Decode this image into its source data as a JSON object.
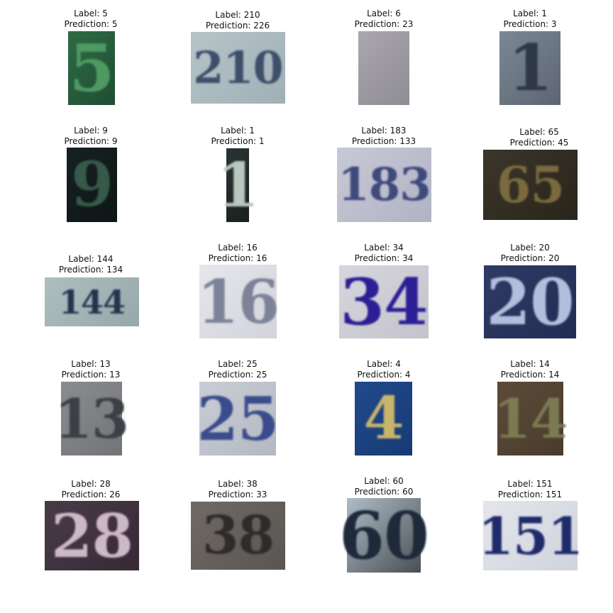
{
  "panels": [
    {
      "label_text": "Label: 5",
      "prediction_text": "Prediction: 5",
      "digits": "5",
      "bg": "#2f6b45",
      "bg2": "#1f4d32",
      "fg": "#4f9a63"
    },
    {
      "label_text": "Label: 210",
      "prediction_text": "Prediction: 226",
      "digits": "210",
      "bg": "#b7c4c8",
      "bg2": "#9fb0b6",
      "fg": "#3e4f6b"
    },
    {
      "label_text": "Label: 6",
      "prediction_text": "Prediction: 23",
      "digits": "",
      "bg": "#aaa7ad",
      "bg2": "#8f8c94",
      "fg": "#9c99a0"
    },
    {
      "label_text": "Label: 1",
      "prediction_text": "Prediction: 3",
      "digits": "1",
      "bg": "#7b8794",
      "bg2": "#5c6672",
      "fg": "#2f3946"
    },
    {
      "label_text": "Label: 9",
      "prediction_text": "Prediction: 9",
      "digits": "9",
      "bg": "#162121",
      "bg2": "#0e1616",
      "fg": "#365a4a"
    },
    {
      "label_text": "Label: 1",
      "prediction_text": "Prediction: 1",
      "digits": "1",
      "bg": "#2a3333",
      "bg2": "#1a2020",
      "fg": "#b9c7be"
    },
    {
      "label_text": "Label: 183",
      "prediction_text": "Prediction: 133",
      "digits": "183",
      "bg": "#c7c9d6",
      "bg2": "#b1b3c4",
      "fg": "#3f4a7c"
    },
    {
      "label_text": "Label: 65",
      "prediction_text": "Prediction: 45",
      "digits": "65",
      "bg": "#3b352a",
      "bg2": "#2a251c",
      "fg": "#7a6a3e"
    },
    {
      "label_text": "Label: 144",
      "prediction_text": "Prediction: 134",
      "digits": "144",
      "bg": "#aebec0",
      "bg2": "#97a8ab",
      "fg": "#27334d"
    },
    {
      "label_text": "Label: 16",
      "prediction_text": "Prediction: 16",
      "digits": "16",
      "bg": "#e6e7ec",
      "bg2": "#d2d3db",
      "fg": "#7c8398"
    },
    {
      "label_text": "Label: 34",
      "prediction_text": "Prediction: 34",
      "digits": "34",
      "bg": "#d7d6dd",
      "bg2": "#c4c3cc",
      "fg": "#2c1f96"
    },
    {
      "label_text": "Label: 20",
      "prediction_text": "Prediction: 20",
      "digits": "20",
      "bg": "#2f3a66",
      "bg2": "#232c52",
      "fg": "#b3bedd"
    },
    {
      "label_text": "Label: 13",
      "prediction_text": "Prediction: 13",
      "digits": "13",
      "bg": "#8a8c8f",
      "bg2": "#727477",
      "fg": "#3c4046"
    },
    {
      "label_text": "Label: 25",
      "prediction_text": "Prediction: 25",
      "digits": "25",
      "bg": "#c9cdd5",
      "bg2": "#b3b8c2",
      "fg": "#3a4c8c"
    },
    {
      "label_text": "Label: 4",
      "prediction_text": "Prediction: 4",
      "digits": "4",
      "bg": "#214a8c",
      "bg2": "#173a73",
      "fg": "#c9b56a"
    },
    {
      "label_text": "Label: 14",
      "prediction_text": "Prediction: 14",
      "digits": "14",
      "bg": "#5c4b3a",
      "bg2": "#493b2c",
      "fg": "#7b7a52"
    },
    {
      "label_text": "Label: 28",
      "prediction_text": "Prediction: 26",
      "digits": "28",
      "bg": "#4a3a48",
      "bg2": "#362a35",
      "fg": "#cdb8c6"
    },
    {
      "label_text": "Label: 38",
      "prediction_text": "Prediction: 33",
      "digits": "38",
      "bg": "#6f6a66",
      "bg2": "#5a5551",
      "fg": "#2f2b2a"
    },
    {
      "label_text": "Label: 60",
      "prediction_text": "Prediction: 60",
      "digits": "60",
      "bg": "#aebcc6",
      "bg2": "#4a4f55",
      "fg": "#1e2a3a"
    },
    {
      "label_text": "Label: 151",
      "prediction_text": "Prediction: 151",
      "digits": "151",
      "bg": "#e4e6ec",
      "bg2": "#cfd3dc",
      "fg": "#1f2a6b"
    }
  ]
}
